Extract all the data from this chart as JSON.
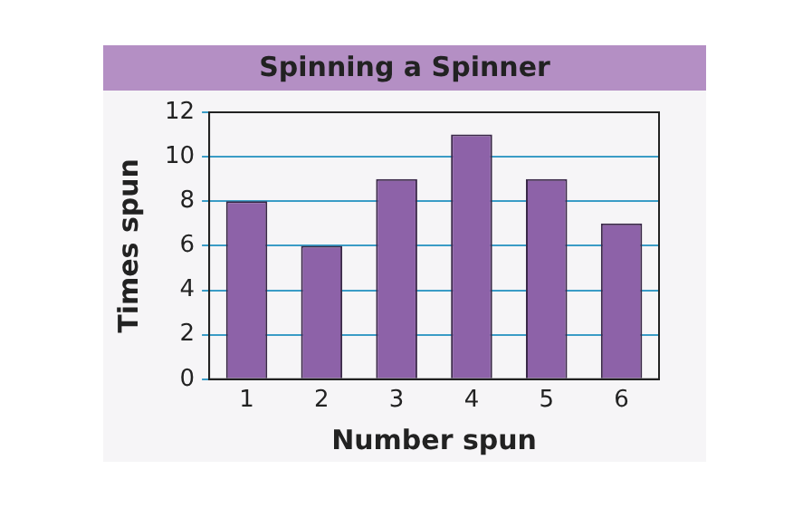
{
  "chart_data": {
    "type": "bar",
    "title": "Spinning a Spinner",
    "xlabel": "Number spun",
    "ylabel": "Times spun",
    "categories": [
      "1",
      "2",
      "3",
      "4",
      "5",
      "6"
    ],
    "values": [
      8,
      6,
      9,
      11,
      9,
      7
    ],
    "color": "#8d62a8",
    "ylim": [
      0,
      12
    ],
    "yticks": [
      0,
      2,
      4,
      6,
      8,
      10,
      12
    ],
    "grid": "y",
    "legend": false
  }
}
